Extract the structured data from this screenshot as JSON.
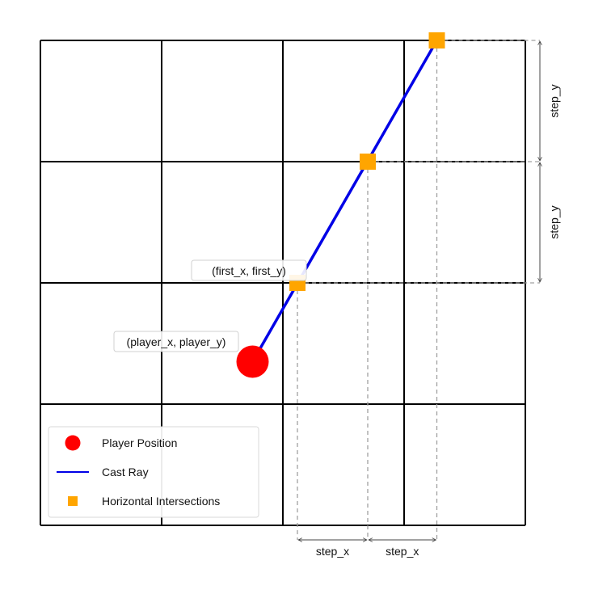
{
  "colors": {
    "grid": "#000000",
    "ray": "#0000e6",
    "player": "#ff0000",
    "intersection": "#ffa500",
    "guide": "#a0a0a0",
    "dimension": "#444444"
  },
  "grid": {
    "cells": 4
  },
  "player": {
    "label": "(player_x, player_y)",
    "x": 1.75,
    "y": 1.35
  },
  "first_intersection": {
    "label": "(first_x, first_y)",
    "x": 2.12,
    "y": 2.0
  },
  "ray": {
    "x": [
      1.75,
      3.27
    ],
    "y": [
      1.35,
      4.0
    ]
  },
  "intersections": [
    {
      "x": 2.12,
      "y": 2.0
    },
    {
      "x": 2.7,
      "y": 3.0
    },
    {
      "x": 3.27,
      "y": 4.0
    }
  ],
  "dimensions": {
    "step_x": [
      "step_x",
      "step_x"
    ],
    "step_y": [
      "step_y",
      "step_y"
    ]
  },
  "legend": [
    {
      "key": "player",
      "label": "Player Position"
    },
    {
      "key": "ray",
      "label": "Cast Ray"
    },
    {
      "key": "intersection",
      "label": "Horizontal Intersections"
    }
  ]
}
